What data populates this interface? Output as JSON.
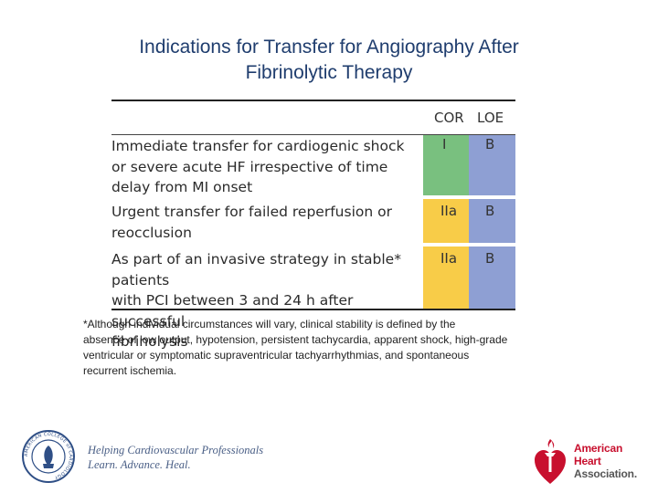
{
  "slide": {
    "title_line1": "Indications for Transfer for Angiography After",
    "title_line2": "Fibrinolytic Therapy"
  },
  "table": {
    "headers": {
      "cor": "COR",
      "loe": "LOE"
    },
    "rows": [
      {
        "lines": [
          "Immediate transfer for cardiogenic shock",
          "or severe acute HF irrespective of time",
          "delay from MI onset"
        ],
        "cor": "I",
        "loe": "B",
        "cor_color": "#79c07f",
        "loe_color": "#8e9fd3"
      },
      {
        "lines": [
          "Urgent transfer for failed reperfusion or",
          "reocclusion"
        ],
        "cor": "IIa",
        "loe": "B",
        "cor_color": "#f8cc48",
        "loe_color": "#8e9fd3"
      },
      {
        "lines": [
          "As part of an invasive strategy in stable* patients",
          "with PCI between 3 and 24 h after successful",
          "fibrinolysis"
        ],
        "cor": "IIa",
        "loe": "B",
        "cor_color": "#f8cc48",
        "loe_color": "#8e9fd3"
      }
    ]
  },
  "footnote": {
    "line1": "*Although individual circumstances will vary, clinical stability is defined by the",
    "line2": "absence of low output, hypotension, persistent tachycardia, apparent shock, high-grade",
    "line3": "ventricular or symptomatic supraventricular tachyarrhythmias, and spontaneous",
    "line4": "recurrent ischemia."
  },
  "footer": {
    "acc_seal_text": "AMERICAN COLLEGE of CARDIOLOGY",
    "tagline_line1": "Helping Cardiovascular Professionals",
    "tagline_line2": "Learn. Advance. Heal.",
    "aha_line1": "American",
    "aha_line2": "Heart",
    "aha_line3": "Association."
  },
  "colors": {
    "title": "#1f3d6e",
    "green": "#79c07f",
    "yellow": "#f8cc48",
    "blue": "#8e9fd3",
    "aha_red": "#c8102e"
  }
}
